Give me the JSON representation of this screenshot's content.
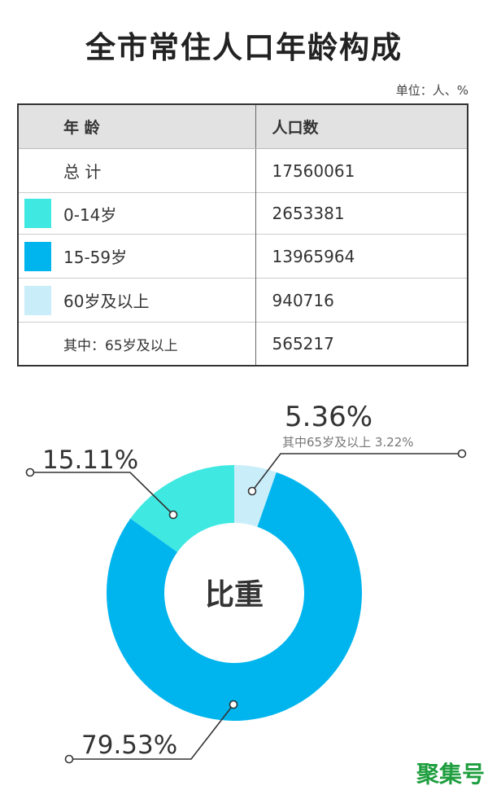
{
  "title": "全市常住人口年龄构成",
  "unit": "单位：人、%",
  "table": {
    "headers": [
      "年  龄",
      "人口数"
    ],
    "rows": [
      {
        "label": "总  计",
        "value": "17560061"
      },
      {
        "label": "0-14岁",
        "value": "2653381",
        "color": "#3fe8e1"
      },
      {
        "label": "15-59岁",
        "value": "13965964",
        "color": "#00b5ee"
      },
      {
        "label": "60岁及以上",
        "value": "940716",
        "color": "#c9eefa"
      },
      {
        "label": "其中：65岁及以上",
        "value": "565217"
      }
    ]
  },
  "chart_data": {
    "type": "pie",
    "style": "donut",
    "center_label": "比重",
    "start": "top, clockwise",
    "slices": [
      {
        "category": "60岁及以上",
        "value": 5.36,
        "label": "5.36%",
        "sublabel": "其中65岁及以上 3.22%",
        "color": "#c9eefa"
      },
      {
        "category": "15-59岁",
        "value": 79.53,
        "label": "79.53%",
        "color": "#00b5ee"
      },
      {
        "category": "0-14岁",
        "value": 15.11,
        "label": "15.11%",
        "color": "#3fe8e1"
      }
    ]
  },
  "watermark": "聚集号"
}
